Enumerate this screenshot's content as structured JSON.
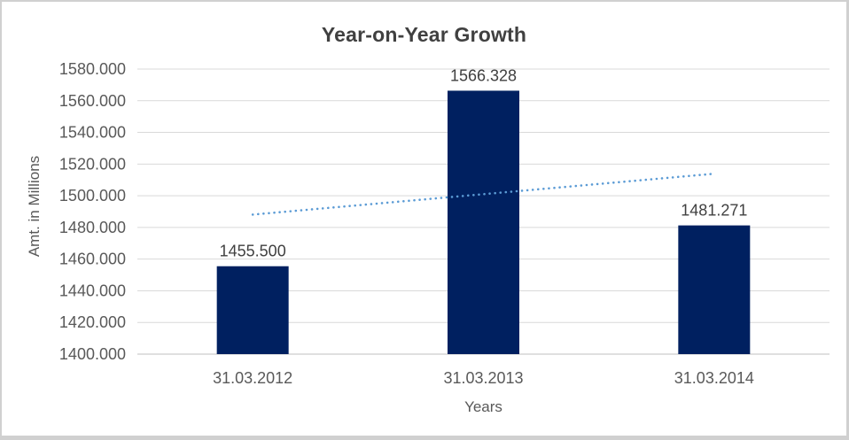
{
  "title": "Year-on-Year Growth",
  "colors": {
    "bar_fill": "#002060",
    "trendline": "#5B9BD5",
    "gridline": "#D9D9D9",
    "axis_line": "#BFBFBF",
    "title_text": "#404040",
    "axis_text": "#595959",
    "data_label_text": "#404040",
    "frame_border": "#D0D0D0",
    "background": "#FFFFFF"
  },
  "chart_data": {
    "type": "bar",
    "title": "Year-on-Year Growth",
    "xlabel": "Years",
    "ylabel": "Amt. in Millions",
    "categories": [
      "31.03.2012",
      "31.03.2013",
      "31.03.2014"
    ],
    "values": [
      1455.5,
      1566.328,
      1481.271
    ],
    "data_labels": [
      "1455.500",
      "1566.328",
      "1481.271"
    ],
    "ylim": [
      1400,
      1580
    ],
    "ytick_step": 20,
    "ytick_labels": [
      "1400.000",
      "1420.000",
      "1440.000",
      "1460.000",
      "1480.000",
      "1500.000",
      "1520.000",
      "1540.000",
      "1560.000",
      "1580.000"
    ],
    "grid": true,
    "legend": false,
    "trendline": {
      "style": "dotted",
      "start_value": 1488.1,
      "end_value": 1513.9
    }
  }
}
